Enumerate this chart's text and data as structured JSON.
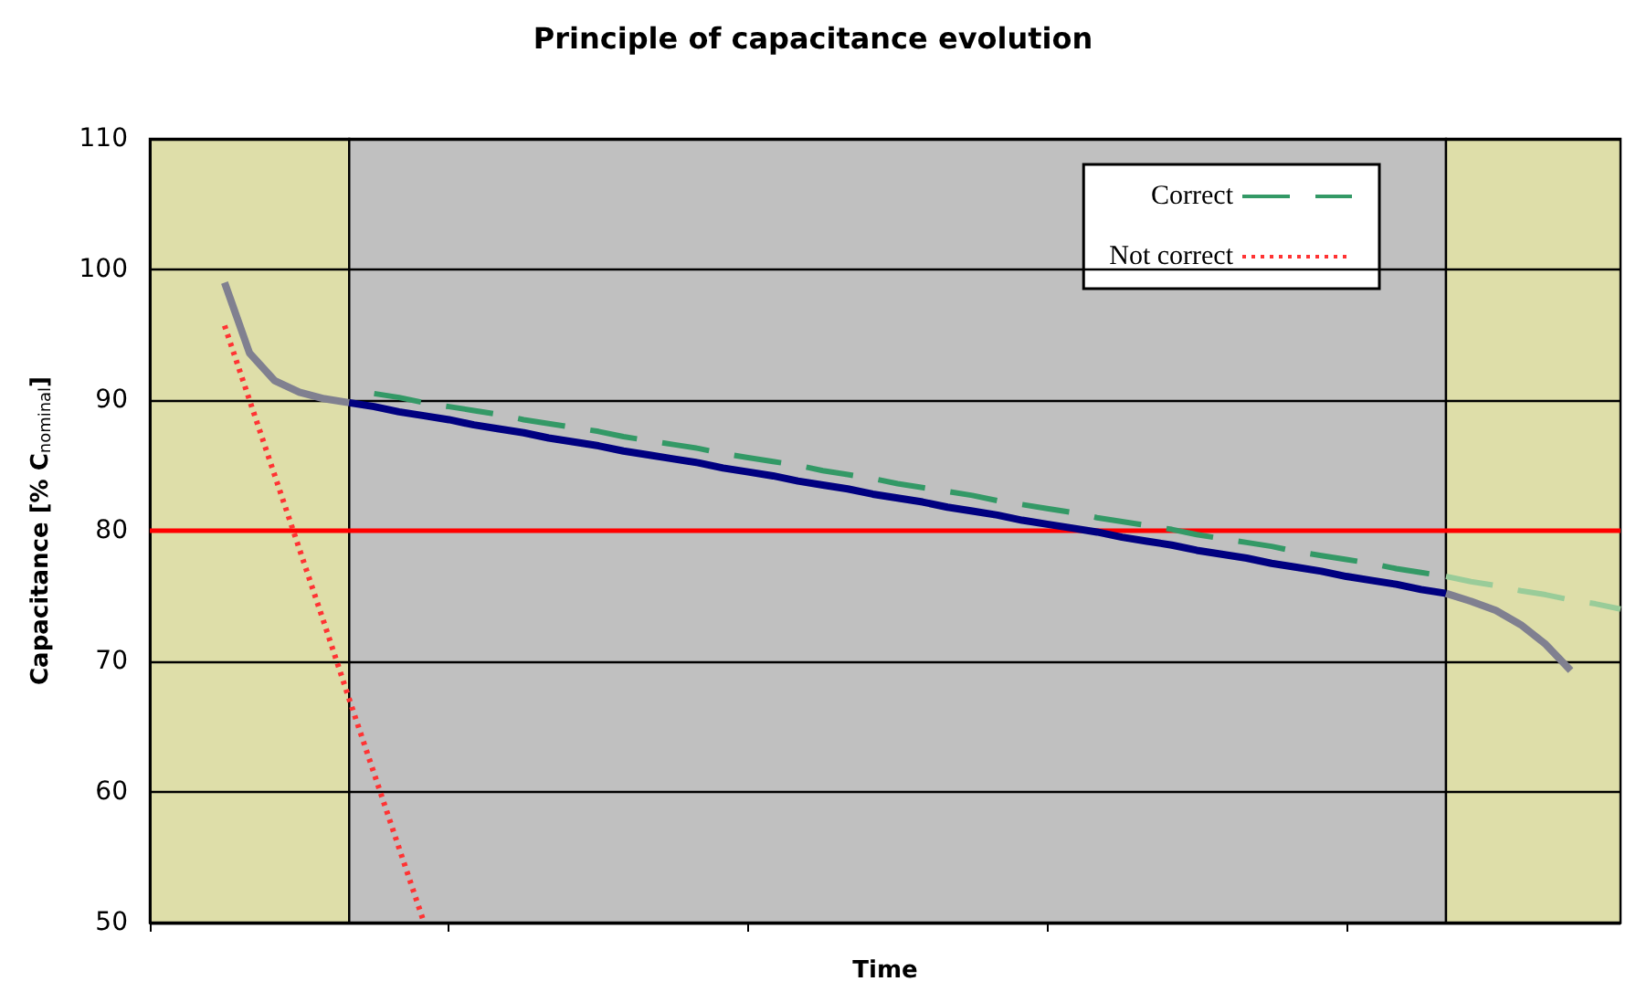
{
  "chart_data": {
    "type": "line",
    "title": "Principle of capacitance evolution",
    "xlabel": "Time",
    "ylabel": "Capacitance [% C$_{nominal}$]",
    "categories": [
      null,
      null,
      null,
      null,
      null,
      null,
      null,
      null,
      null,
      null,
      null,
      null,
      null,
      null,
      null,
      null,
      null,
      null,
      null,
      null,
      null,
      null,
      null,
      null,
      null,
      null,
      null,
      null,
      null,
      null,
      null,
      null,
      null,
      null,
      null,
      null,
      null,
      null,
      null,
      null,
      null,
      null,
      null,
      null,
      null,
      null,
      null,
      null,
      null,
      null,
      null,
      null,
      null,
      null,
      null,
      null,
      null,
      null,
      null,
      null
    ],
    "ylim": [
      50,
      110
    ],
    "yticks": [
      50,
      60,
      70,
      80,
      90,
      100,
      110
    ],
    "grid": "y",
    "legend": "top right",
    "marker": "none",
    "ref_lines": [
      {
        "axis": "y",
        "value": 80,
        "color": "#ff0000"
      }
    ],
    "series": [
      {
        "color": "#808090",
        "values": [
          null,
          null,
          null,
          99,
          93.6,
          91.5,
          90.6,
          90.1,
          89.8,
          null,
          null,
          null,
          null,
          null,
          null,
          null,
          null,
          null,
          null,
          null,
          null,
          null,
          null,
          null,
          null,
          null,
          null,
          null,
          null,
          null,
          null,
          null,
          null,
          null,
          null,
          null,
          null,
          null,
          null,
          null,
          null,
          null,
          null,
          null,
          null,
          null,
          null,
          null,
          null,
          null,
          null,
          null,
          null,
          null,
          null,
          null,
          null,
          null,
          null,
          null
        ]
      },
      {
        "color": "#000080",
        "values": [
          null,
          null,
          null,
          null,
          null,
          null,
          null,
          null,
          89.8,
          89.5,
          89.1,
          88.8,
          88.5,
          88.1,
          87.8,
          87.5,
          87.1,
          86.8,
          86.5,
          86.1,
          85.8,
          85.5,
          85.2,
          84.8,
          84.5,
          84.2,
          83.8,
          83.5,
          83.2,
          82.8,
          82.5,
          82.2,
          81.8,
          81.5,
          81.2,
          80.8,
          80.5,
          80.2,
          79.9,
          79.5,
          79.2,
          78.9,
          78.5,
          78.2,
          77.9,
          77.5,
          77.2,
          76.9,
          76.5,
          76.2,
          75.9,
          75.5,
          75.2,
          null,
          null,
          null,
          null,
          null,
          null,
          null
        ]
      },
      {
        "color": "#808090",
        "values": [
          null,
          null,
          null,
          null,
          null,
          null,
          null,
          null,
          null,
          null,
          null,
          null,
          null,
          null,
          null,
          null,
          null,
          null,
          null,
          null,
          null,
          null,
          null,
          null,
          null,
          null,
          null,
          null,
          null,
          null,
          null,
          null,
          null,
          null,
          null,
          null,
          null,
          null,
          null,
          null,
          null,
          null,
          null,
          null,
          null,
          null,
          null,
          null,
          null,
          null,
          null,
          null,
          75.2,
          74.6,
          73.9,
          72.8,
          71.3,
          69.3,
          null,
          null
        ]
      },
      {
        "name": "Correct",
        "color": "#339966",
        "line_style": "dashed",
        "values": [
          null,
          null,
          null,
          null,
          null,
          null,
          null,
          null,
          null,
          90.5,
          90.2,
          89.8,
          89.5,
          89.2,
          88.9,
          88.5,
          88.2,
          87.9,
          87.6,
          87.2,
          86.9,
          86.6,
          86.3,
          85.9,
          85.6,
          85.3,
          85.0,
          84.6,
          84.3,
          84.0,
          83.6,
          83.3,
          83.0,
          82.7,
          82.3,
          82.0,
          81.7,
          81.4,
          81.0,
          80.7,
          80.4,
          80.1,
          79.7,
          79.4,
          79.1,
          78.8,
          78.4,
          78.1,
          77.8,
          77.5,
          77.1,
          76.8,
          76.5,
          null,
          null,
          null,
          null,
          null,
          null,
          null
        ]
      },
      {
        "color": "#99cc99",
        "line_style": "dashed",
        "values": [
          null,
          null,
          null,
          null,
          null,
          null,
          null,
          null,
          null,
          null,
          null,
          null,
          null,
          null,
          null,
          null,
          null,
          null,
          null,
          null,
          null,
          null,
          null,
          null,
          null,
          null,
          null,
          null,
          null,
          null,
          null,
          null,
          null,
          null,
          null,
          null,
          null,
          null,
          null,
          null,
          null,
          null,
          null,
          null,
          null,
          null,
          null,
          null,
          null,
          null,
          null,
          null,
          76.5,
          76.1,
          75.8,
          75.4,
          75.1,
          74.7,
          74.4,
          74.0
        ]
      },
      {
        "name": "Not correct",
        "color": "#ff3333",
        "line_style": "dotted",
        "values": [
          null,
          null,
          null,
          95.7,
          90.0,
          84.3,
          78.6,
          72.9,
          67.1,
          61.4,
          55.7,
          50.0,
          null,
          null,
          null,
          null,
          null,
          null,
          null,
          null,
          null,
          null,
          null,
          null,
          null,
          null,
          null,
          null,
          null,
          null,
          null,
          null,
          null,
          null,
          null,
          null,
          null,
          null,
          null,
          null,
          null,
          null,
          null,
          null,
          null,
          null,
          null,
          null,
          null,
          null,
          null,
          null,
          null,
          null,
          null,
          null,
          null,
          null,
          null,
          null
        ]
      }
    ]
  }
}
